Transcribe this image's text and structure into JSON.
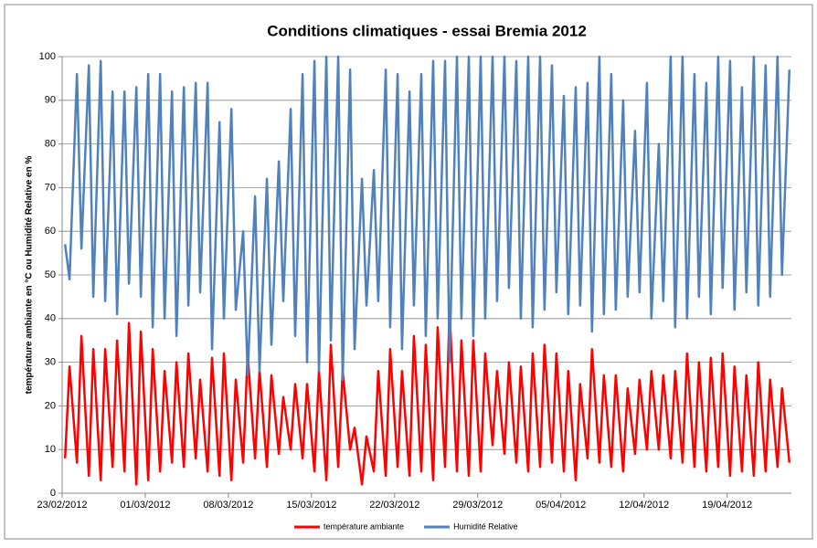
{
  "chart_data": {
    "type": "line",
    "title": "Conditions climatiques - essai Bremia 2012",
    "y_label": "température ambiante en °C ou Humidité Relative en %",
    "x": [
      "2012-02-23 06:00",
      "2012-02-23 15:00",
      "2012-02-24 06:00",
      "2012-02-24 15:00",
      "2012-02-25 06:00",
      "2012-02-25 15:00",
      "2012-02-26 06:00",
      "2012-02-26 15:00",
      "2012-02-27 06:00",
      "2012-02-27 15:00",
      "2012-02-28 06:00",
      "2012-02-28 15:00",
      "2012-02-29 06:00",
      "2012-02-29 15:00",
      "2012-03-01 06:00",
      "2012-03-01 15:00",
      "2012-03-02 06:00",
      "2012-03-02 15:00",
      "2012-03-03 06:00",
      "2012-03-03 15:00",
      "2012-03-04 06:00",
      "2012-03-04 15:00",
      "2012-03-05 06:00",
      "2012-03-05 15:00",
      "2012-03-06 06:00",
      "2012-03-06 15:00",
      "2012-03-07 06:00",
      "2012-03-07 15:00",
      "2012-03-08 06:00",
      "2012-03-08 15:00",
      "2012-03-09 06:00",
      "2012-03-09 15:00",
      "2012-03-10 06:00",
      "2012-03-10 15:00",
      "2012-03-11 06:00",
      "2012-03-11 15:00",
      "2012-03-12 06:00",
      "2012-03-12 15:00",
      "2012-03-13 06:00",
      "2012-03-13 15:00",
      "2012-03-14 06:00",
      "2012-03-14 15:00",
      "2012-03-15 06:00",
      "2012-03-15 15:00",
      "2012-03-16 06:00",
      "2012-03-16 15:00",
      "2012-03-17 06:00",
      "2012-03-17 15:00",
      "2012-03-18 06:00",
      "2012-03-18 15:00",
      "2012-03-19 06:00",
      "2012-03-19 15:00",
      "2012-03-20 06:00",
      "2012-03-20 15:00",
      "2012-03-21 06:00",
      "2012-03-21 15:00",
      "2012-03-22 06:00",
      "2012-03-22 15:00",
      "2012-03-23 06:00",
      "2012-03-23 15:00",
      "2012-03-24 06:00",
      "2012-03-24 15:00",
      "2012-03-25 06:00",
      "2012-03-25 15:00",
      "2012-03-26 06:00",
      "2012-03-26 15:00",
      "2012-03-27 06:00",
      "2012-03-27 15:00",
      "2012-03-28 06:00",
      "2012-03-28 15:00",
      "2012-03-29 06:00",
      "2012-03-29 15:00",
      "2012-03-30 06:00",
      "2012-03-30 15:00",
      "2012-03-31 06:00",
      "2012-03-31 15:00",
      "2012-04-01 06:00",
      "2012-04-01 15:00",
      "2012-04-02 06:00",
      "2012-04-02 15:00",
      "2012-04-03 06:00",
      "2012-04-03 15:00",
      "2012-04-04 06:00",
      "2012-04-04 15:00",
      "2012-04-05 06:00",
      "2012-04-05 15:00",
      "2012-04-06 06:00",
      "2012-04-06 15:00",
      "2012-04-07 06:00",
      "2012-04-07 15:00",
      "2012-04-08 06:00",
      "2012-04-08 15:00",
      "2012-04-09 06:00",
      "2012-04-09 15:00",
      "2012-04-10 06:00",
      "2012-04-10 15:00",
      "2012-04-11 06:00",
      "2012-04-11 15:00",
      "2012-04-12 06:00",
      "2012-04-12 15:00",
      "2012-04-13 06:00",
      "2012-04-13 15:00",
      "2012-04-14 06:00",
      "2012-04-14 15:00",
      "2012-04-15 06:00",
      "2012-04-15 15:00",
      "2012-04-16 06:00",
      "2012-04-16 15:00",
      "2012-04-17 06:00",
      "2012-04-17 15:00",
      "2012-04-18 06:00",
      "2012-04-18 15:00",
      "2012-04-19 06:00",
      "2012-04-19 15:00",
      "2012-04-20 06:00",
      "2012-04-20 15:00",
      "2012-04-21 06:00",
      "2012-04-21 15:00",
      "2012-04-22 06:00",
      "2012-04-22 15:00",
      "2012-04-23 06:00",
      "2012-04-23 15:00",
      "2012-04-24 06:00"
    ],
    "series": [
      {
        "name": "température ambiante",
        "color": "#ff0000",
        "values": [
          8,
          29,
          7,
          36,
          4,
          33,
          3,
          33,
          6,
          35,
          5,
          39,
          2,
          37,
          3,
          33,
          5,
          28,
          7,
          30,
          6,
          32,
          8,
          26,
          5,
          31,
          4,
          32,
          3,
          26,
          7,
          32,
          8,
          28,
          6,
          27,
          9,
          22,
          10,
          25,
          8,
          25,
          5,
          28,
          3,
          34,
          6,
          28,
          10,
          15,
          2,
          13,
          5,
          28,
          4,
          33,
          6,
          28,
          4,
          36,
          5,
          34,
          3,
          38,
          6,
          42,
          5,
          35,
          4,
          35,
          5,
          32,
          11,
          28,
          9,
          30,
          7,
          29,
          5,
          32,
          6,
          34,
          7,
          32,
          5,
          28,
          3,
          25,
          8,
          33,
          7,
          27,
          6,
          27,
          5,
          24,
          9,
          26,
          10,
          28,
          10,
          27,
          8,
          28,
          7,
          32,
          6,
          30,
          5,
          31,
          6,
          32,
          4,
          29,
          5,
          27,
          4,
          30,
          5,
          26,
          6,
          24,
          7
        ]
      },
      {
        "name": "Humidité Relative",
        "color": "#4f81bd",
        "values": [
          57,
          49,
          96,
          56,
          98,
          45,
          99,
          44,
          92,
          41,
          92,
          48,
          93,
          45,
          96,
          38,
          96,
          40,
          92,
          36,
          93,
          43,
          94,
          46,
          94,
          33,
          85,
          40,
          88,
          42,
          60,
          27,
          68,
          28,
          72,
          34,
          76,
          44,
          88,
          36,
          96,
          30,
          99,
          28,
          100,
          35,
          100,
          26,
          97,
          33,
          72,
          43,
          74,
          44,
          97,
          38,
          96,
          33,
          92,
          43,
          96,
          36,
          99,
          40,
          99,
          30,
          100,
          40,
          100,
          36,
          100,
          40,
          100,
          44,
          100,
          47,
          99,
          40,
          100,
          38,
          100,
          42,
          98,
          46,
          91,
          41,
          93,
          43,
          94,
          37,
          100,
          41,
          96,
          42,
          90,
          45,
          83,
          46,
          94,
          40,
          80,
          44,
          100,
          38,
          100,
          40,
          96,
          45,
          94,
          41,
          100,
          47,
          99,
          42,
          93,
          46,
          100,
          43,
          98,
          45,
          100,
          50,
          97
        ]
      }
    ],
    "xlim": [
      "2012-02-23 00:00",
      "2012-04-24 10:00"
    ],
    "xticks": [
      {
        "value": "2012-02-23",
        "label": "23/02/2012"
      },
      {
        "value": "2012-03-01",
        "label": "01/03/2012"
      },
      {
        "value": "2012-03-08",
        "label": "08/03/2012"
      },
      {
        "value": "2012-03-15",
        "label": "15/03/2012"
      },
      {
        "value": "2012-03-22",
        "label": "22/03/2012"
      },
      {
        "value": "2012-03-29",
        "label": "29/03/2012"
      },
      {
        "value": "2012-04-05",
        "label": "05/04/2012"
      },
      {
        "value": "2012-04-12",
        "label": "12/04/2012"
      },
      {
        "value": "2012-04-19",
        "label": "19/04/2012"
      }
    ],
    "ylim": [
      0,
      100
    ],
    "yticks": [
      0,
      10,
      20,
      30,
      40,
      50,
      60,
      70,
      80,
      90,
      100
    ],
    "grid": true,
    "legend": "bottom"
  }
}
